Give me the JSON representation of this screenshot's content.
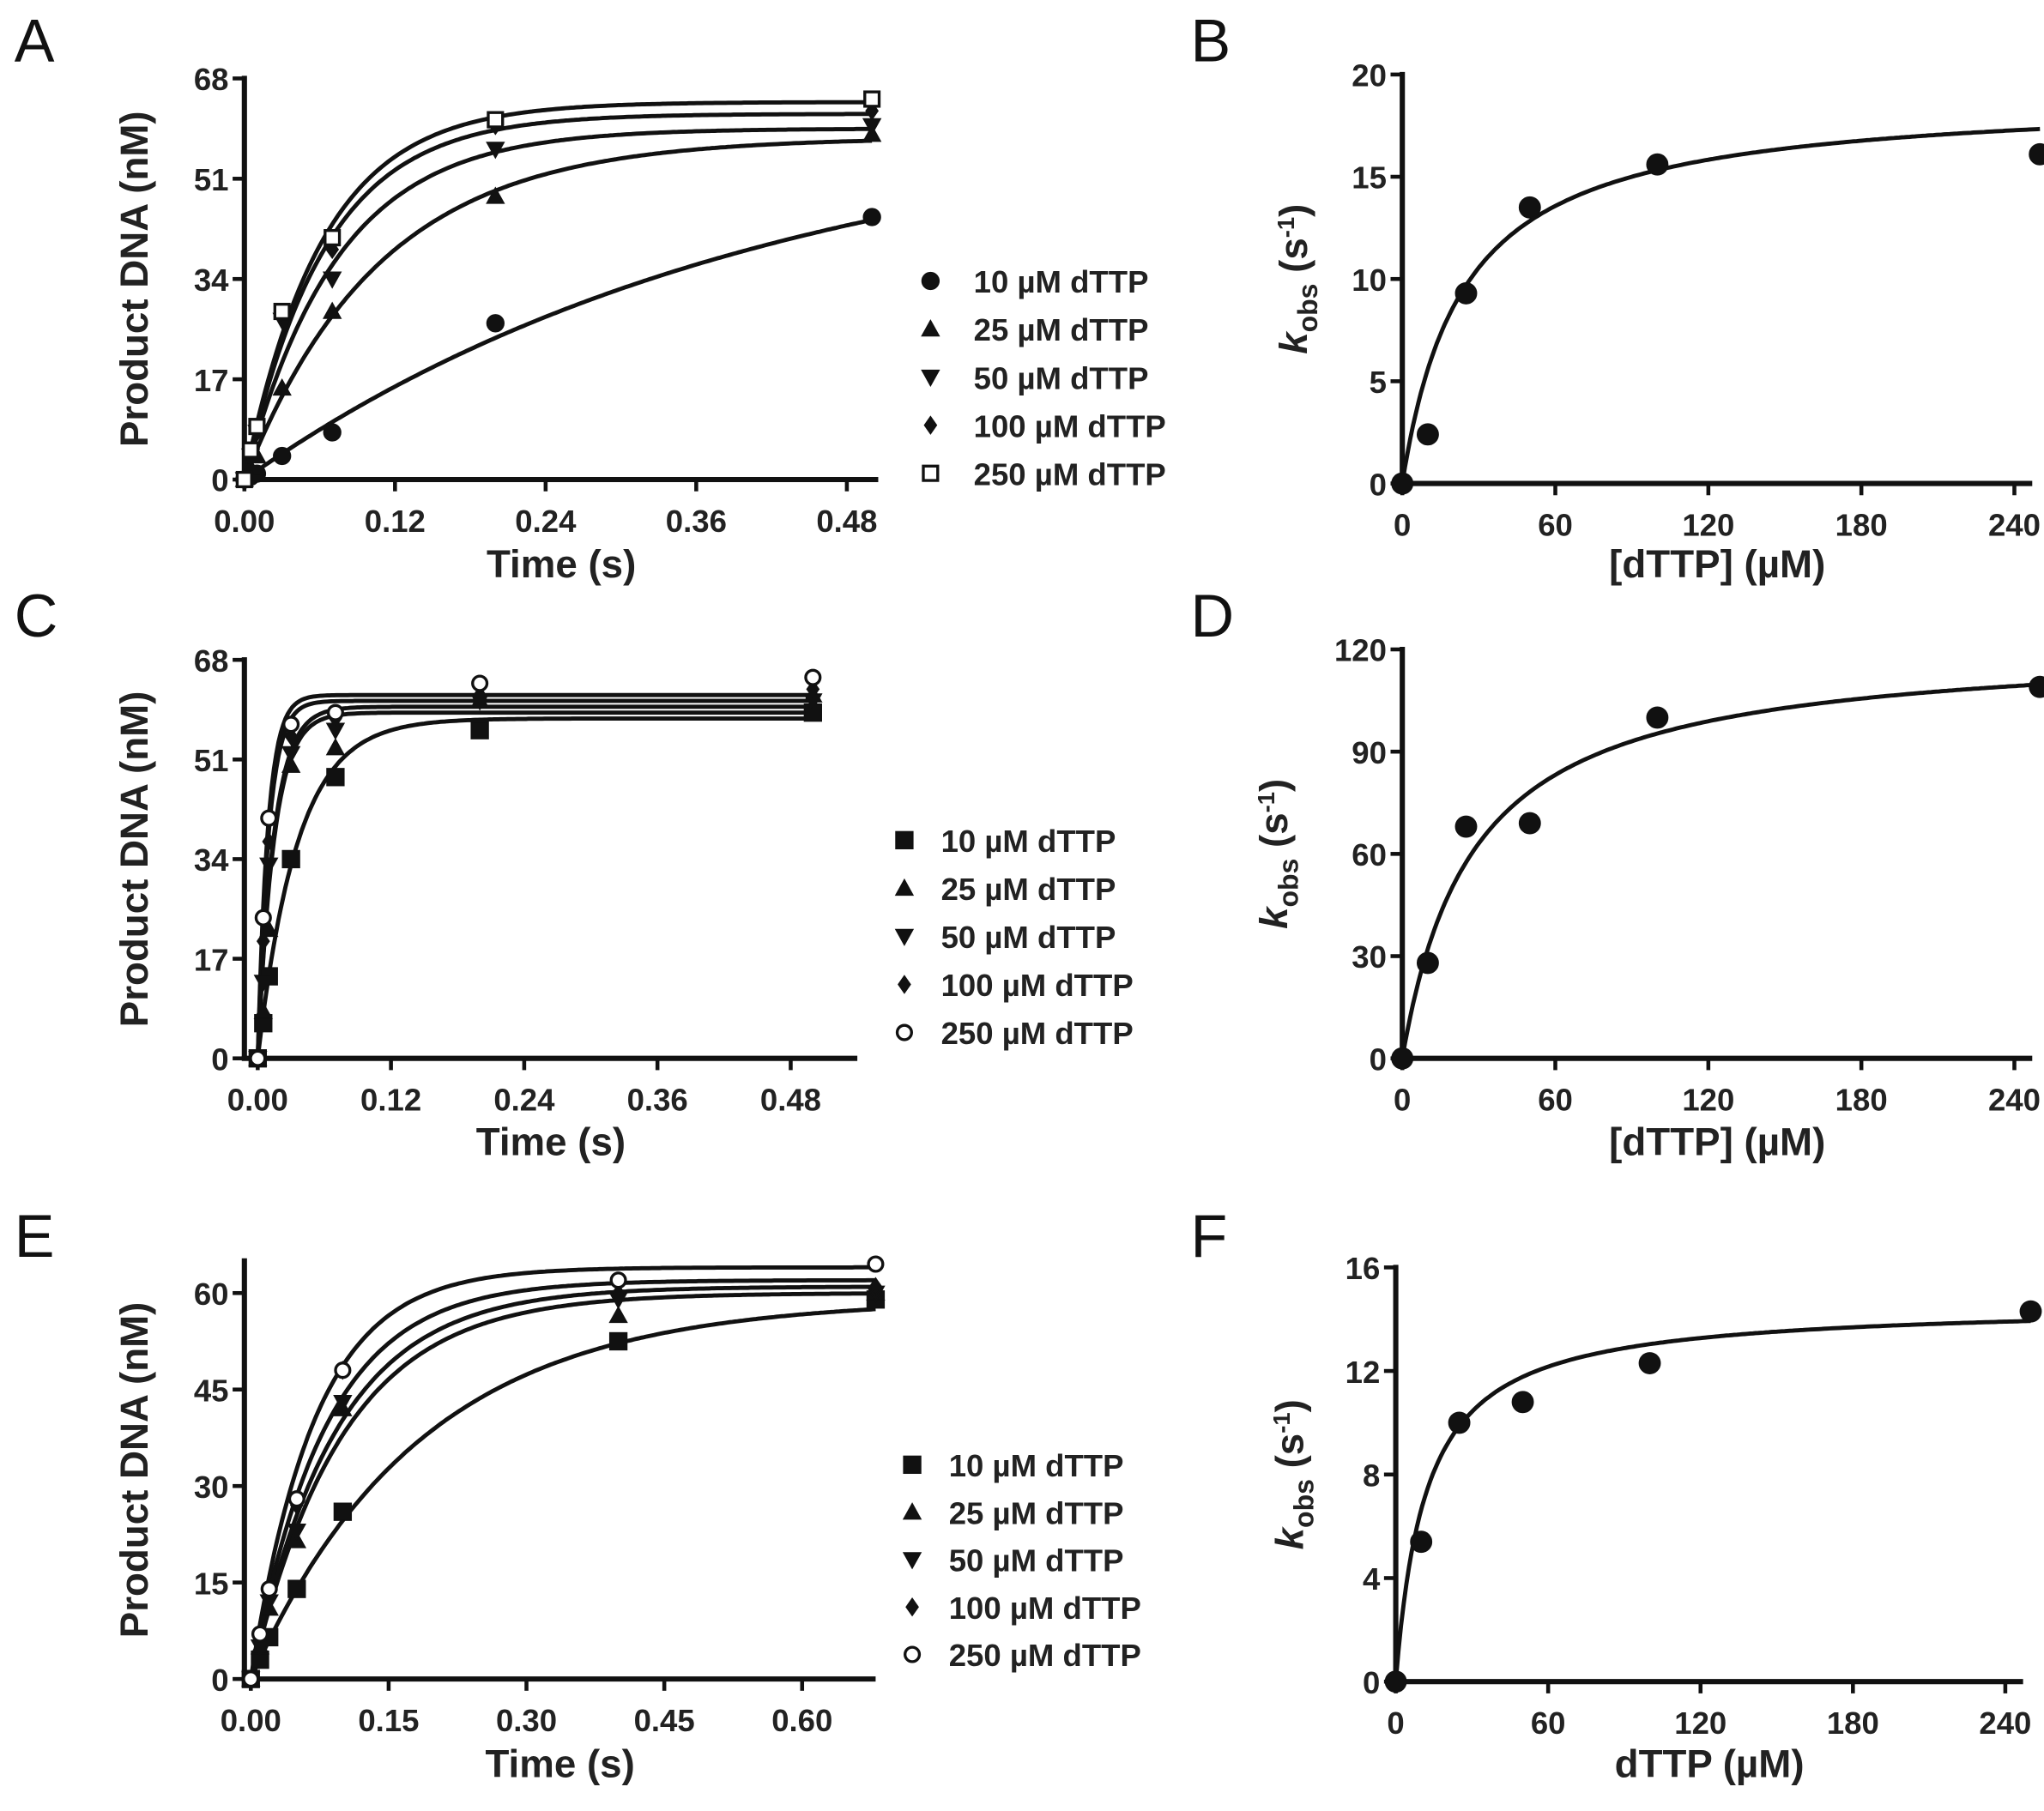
{
  "colors": {
    "ink": "#111111",
    "background": "#ffffff"
  },
  "chart_data": [
    {
      "panel": "A",
      "type": "line+scatter",
      "xlabel": "Time (s)",
      "ylabel": "Product DNA (nM)",
      "xlim": [
        0,
        0.505
      ],
      "ylim": [
        0,
        68
      ],
      "xticks": [
        "0.00",
        "0.12",
        "0.24",
        "0.36",
        "0.48"
      ],
      "xtick_values": [
        0,
        0.12,
        0.24,
        0.36,
        0.48
      ],
      "yticks": [
        "0",
        "17",
        "34",
        "51",
        "68"
      ],
      "ytick_values": [
        0,
        17,
        34,
        51,
        68
      ],
      "legend_placement": "right",
      "x": [
        0,
        0.005,
        0.01,
        0.03,
        0.07,
        0.2,
        0.5
      ],
      "fit": "single-exponential",
      "series": [
        {
          "name": "10 µM dTTP",
          "marker": "circle",
          "values": [
            0,
            0.5,
            1,
            4,
            8,
            26.5,
            44.5
          ],
          "amplitude": 63,
          "rate": 2.4
        },
        {
          "name": "25 µM dTTP",
          "marker": "triangle-up",
          "values": [
            0,
            2,
            4,
            15.5,
            28.5,
            48,
            58.5
          ],
          "amplitude": 58,
          "rate": 9.3
        },
        {
          "name": "50 µM dTTP",
          "marker": "triangle-down",
          "values": [
            0,
            4,
            8,
            27,
            34,
            56,
            60
          ],
          "amplitude": 59.5,
          "rate": 13.5
        },
        {
          "name": "100 µM dTTP",
          "marker": "diamond",
          "values": [
            0,
            4,
            8,
            28,
            39,
            60,
            62.5
          ],
          "amplitude": 62,
          "rate": 15.6
        },
        {
          "name": "250 µM dTTP",
          "marker": "square-open",
          "values": [
            0,
            5,
            9,
            28.5,
            41,
            61,
            64.5
          ],
          "amplitude": 64,
          "rate": 16.1
        }
      ]
    },
    {
      "panel": "B",
      "type": "line+scatter",
      "xlabel": "[dTTP] (µM)",
      "ylabel_parts": [
        "k",
        "obs",
        " (s",
        "-1",
        ")"
      ],
      "xlim": [
        0,
        247
      ],
      "ylim": [
        0,
        20
      ],
      "xticks": [
        "0",
        "60",
        "120",
        "180",
        "240"
      ],
      "xtick_values": [
        0,
        60,
        120,
        180,
        240
      ],
      "yticks": [
        "0",
        "5",
        "10",
        "15",
        "20"
      ],
      "ytick_values": [
        0,
        5,
        10,
        15,
        20
      ],
      "fit": "hyperbolic",
      "vmax": 19,
      "kd": 24,
      "x": [
        0,
        10,
        25,
        50,
        100,
        250
      ],
      "series": [
        {
          "name": "kobs",
          "marker": "circle",
          "values": [
            0,
            2.4,
            9.3,
            13.5,
            15.6,
            16.1
          ]
        }
      ]
    },
    {
      "panel": "C",
      "type": "line+scatter",
      "xlabel": "Time (s)",
      "ylabel": "Product DNA (nM)",
      "xlim": [
        -0.012,
        0.54
      ],
      "ylim": [
        0,
        68
      ],
      "xticks": [
        "0.00",
        "0.12",
        "0.24",
        "0.36",
        "0.48"
      ],
      "xtick_values": [
        0,
        0.12,
        0.24,
        0.36,
        0.48
      ],
      "yticks": [
        "0",
        "17",
        "34",
        "51",
        "68"
      ],
      "ytick_values": [
        0,
        17,
        34,
        51,
        68
      ],
      "legend_placement": "right",
      "x": [
        0,
        0.005,
        0.01,
        0.03,
        0.07,
        0.2,
        0.5
      ],
      "fit": "single-exponential",
      "series": [
        {
          "name": "10 µM dTTP",
          "marker": "square",
          "values": [
            0,
            6,
            14,
            34,
            48,
            56,
            59
          ],
          "amplitude": 58,
          "rate": 28
        },
        {
          "name": "25 µM dTTP",
          "marker": "triangle-up",
          "values": [
            0,
            8,
            22,
            50,
            53,
            61,
            62
          ],
          "amplitude": 59,
          "rate": 68
        },
        {
          "name": "50 µM dTTP",
          "marker": "triangle-down",
          "values": [
            0,
            13,
            33,
            52,
            56,
            61,
            61
          ],
          "amplitude": 60,
          "rate": 69
        },
        {
          "name": "100 µM dTTP",
          "marker": "diamond",
          "values": [
            0,
            20,
            37,
            55,
            58,
            62,
            63
          ],
          "amplitude": 61,
          "rate": 100
        },
        {
          "name": "250 µM dTTP",
          "marker": "circle-open",
          "values": [
            0,
            24,
            41,
            57,
            59,
            64,
            65
          ],
          "amplitude": 62,
          "rate": 109
        }
      ]
    },
    {
      "panel": "D",
      "type": "line+scatter",
      "xlabel": "[dTTP] (µM)",
      "ylabel_parts": [
        "k",
        "obs",
        " (s",
        "-1",
        ")"
      ],
      "xlim": [
        0,
        247
      ],
      "ylim": [
        0,
        120
      ],
      "xticks": [
        "0",
        "60",
        "120",
        "180",
        "240"
      ],
      "xtick_values": [
        0,
        60,
        120,
        180,
        240
      ],
      "yticks": [
        "0",
        "30",
        "60",
        "90",
        "120"
      ],
      "ytick_values": [
        0,
        30,
        60,
        90,
        120
      ],
      "fit": "hyperbolic",
      "vmax": 122,
      "kd": 28,
      "x": [
        0,
        10,
        25,
        50,
        100,
        250
      ],
      "series": [
        {
          "name": "kobs",
          "marker": "circle",
          "values": [
            0,
            28,
            68,
            69,
            100,
            109
          ]
        }
      ]
    },
    {
      "panel": "E",
      "type": "line+scatter",
      "xlabel": "Time (s)",
      "ylabel": "Product DNA (nM)",
      "xlim": [
        -0.007,
        0.68
      ],
      "ylim": [
        0,
        65
      ],
      "xticks": [
        "0.00",
        "0.15",
        "0.30",
        "0.45",
        "0.60"
      ],
      "xtick_values": [
        0,
        0.15,
        0.3,
        0.45,
        0.6
      ],
      "yticks": [
        "0",
        "15",
        "30",
        "45",
        "60"
      ],
      "ytick_values": [
        0,
        15,
        30,
        45,
        60
      ],
      "legend_placement": "right",
      "x": [
        0,
        0.01,
        0.02,
        0.05,
        0.1,
        0.4,
        0.68
      ],
      "fit": "single-exponential",
      "series": [
        {
          "name": "10 µM dTTP",
          "marker": "square",
          "values": [
            0,
            3,
            6.5,
            14,
            26,
            52.5,
            59
          ],
          "amplitude": 59,
          "rate": 5.4
        },
        {
          "name": "25 µM dTTP",
          "marker": "triangle-up",
          "values": [
            0,
            5,
            11,
            21.5,
            42,
            56.5,
            60
          ],
          "amplitude": 60,
          "rate": 10
        },
        {
          "name": "50 µM dTTP",
          "marker": "triangle-down",
          "values": [
            0,
            5,
            12,
            23,
            43,
            59,
            60
          ],
          "amplitude": 61,
          "rate": 10.8
        },
        {
          "name": "100 µM dTTP",
          "marker": "diamond",
          "values": [
            0,
            6,
            13,
            27,
            48,
            60,
            61
          ],
          "amplitude": 62,
          "rate": 12.3
        },
        {
          "name": "250 µM dTTP",
          "marker": "circle-open",
          "values": [
            0,
            7,
            14,
            28,
            48,
            62,
            64.5
          ],
          "amplitude": 64,
          "rate": 14.3
        }
      ]
    },
    {
      "panel": "F",
      "type": "line+scatter",
      "xlabel": "dTTP (µM)",
      "ylabel_parts": [
        "k",
        "obs",
        " (s",
        "-1",
        ")"
      ],
      "xlim": [
        0,
        247
      ],
      "ylim": [
        0,
        16
      ],
      "xticks": [
        "0",
        "60",
        "120",
        "180",
        "240"
      ],
      "xtick_values": [
        0,
        60,
        120,
        180,
        240
      ],
      "yticks": [
        "0",
        "4",
        "8",
        "12",
        "16"
      ],
      "ytick_values": [
        0,
        4,
        8,
        12,
        16
      ],
      "fit": "hyperbolic",
      "vmax": 14.6,
      "kd": 12,
      "x": [
        0,
        10,
        25,
        50,
        100,
        250
      ],
      "series": [
        {
          "name": "kobs",
          "marker": "circle",
          "values": [
            0,
            5.4,
            10,
            10.8,
            12.3,
            14.3
          ]
        }
      ]
    }
  ]
}
